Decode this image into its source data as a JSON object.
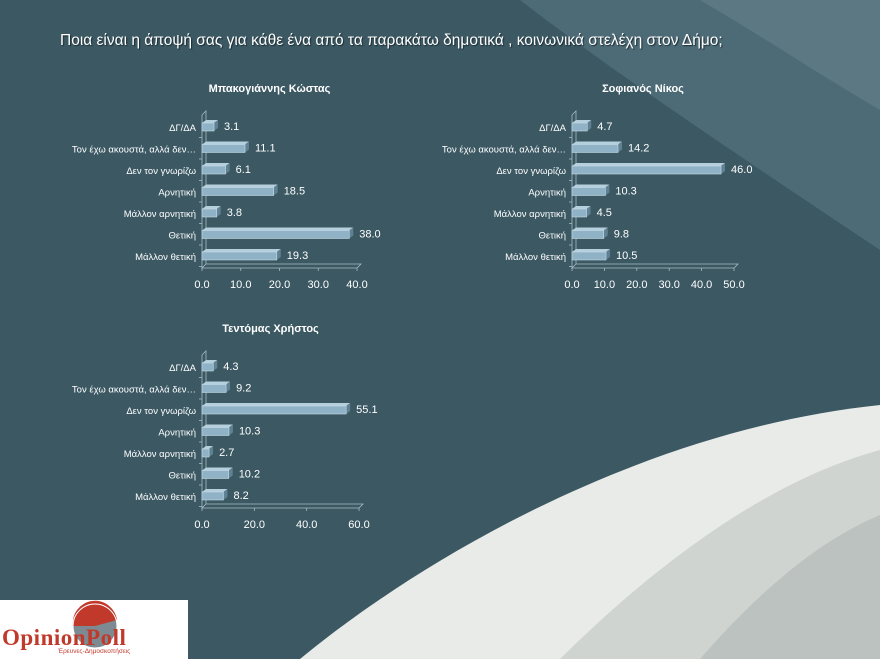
{
  "title": "Ποια είναι η άποψή σας για κάθε ένα από τα παρακάτω δημοτικά , κοινωνικά στελέχη στον Δήμο;",
  "logo": {
    "name": "OpinionPoll",
    "tagline": "Έρευνες-Δημοσκοπήσεις"
  },
  "colors": {
    "background": "#3b5863",
    "bar": "#8fb2c6",
    "text": "#ffffff"
  },
  "chart_data": [
    {
      "type": "bar",
      "orientation": "horizontal",
      "title": "Μπακογιάννης Κώστας",
      "categories": [
        "ΔΓ/ΔΑ",
        "Τον έχω ακουστά, αλλά δεν…",
        "Δεν τον γνωρίζω",
        "Αρνητική",
        "Μάλλον αρνητική",
        "Θετική",
        "Μάλλον θετική"
      ],
      "values": [
        3.1,
        11.1,
        6.1,
        18.5,
        3.8,
        38.0,
        19.3
      ],
      "xlim": [
        0,
        40
      ],
      "ticks": [
        "0.0",
        "10.0",
        "20.0",
        "30.0",
        "40.0"
      ]
    },
    {
      "type": "bar",
      "orientation": "horizontal",
      "title": "Σοφιανός Νίκος",
      "categories": [
        "ΔΓ/ΔΑ",
        "Τον έχω ακουστά, αλλά δεν…",
        "Δεν τον γνωρίζω",
        "Αρνητική",
        "Μάλλον αρνητική",
        "Θετική",
        "Μάλλον θετική"
      ],
      "values": [
        4.7,
        14.2,
        46.0,
        10.3,
        4.5,
        9.8,
        10.5
      ],
      "xlim": [
        0,
        50
      ],
      "ticks": [
        "0.0",
        "10.0",
        "20.0",
        "30.0",
        "40.0",
        "50.0"
      ]
    },
    {
      "type": "bar",
      "orientation": "horizontal",
      "title": "Τεντόμας Χρήστος",
      "categories": [
        "ΔΓ/ΔΑ",
        "Τον έχω ακουστά, αλλά δεν…",
        "Δεν τον γνωρίζω",
        "Αρνητική",
        "Μάλλον αρνητική",
        "Θετική",
        "Μάλλον θετική"
      ],
      "values": [
        4.3,
        9.2,
        55.1,
        10.3,
        2.7,
        10.2,
        8.2
      ],
      "xlim": [
        0,
        60
      ],
      "ticks": [
        "0.0",
        "20.0",
        "40.0",
        "60.0"
      ]
    }
  ]
}
